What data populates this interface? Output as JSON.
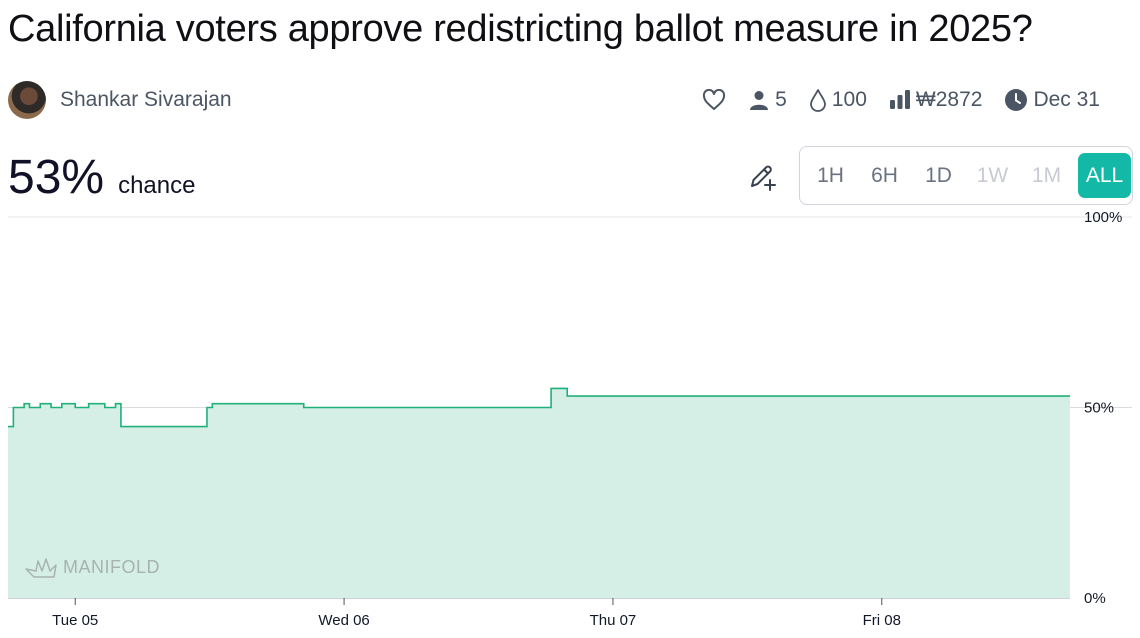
{
  "title": "California voters approve redistricting ballot measure in 2025?",
  "author": {
    "name": "Shankar Sivarajan"
  },
  "stats": {
    "traders": "5",
    "liquidity": "100",
    "volume": "₩2872",
    "close_date": "Dec 31"
  },
  "probability": {
    "value": "53%",
    "label": "chance"
  },
  "time_ranges": [
    {
      "label": "1H",
      "state": "enabled"
    },
    {
      "label": "6H",
      "state": "enabled"
    },
    {
      "label": "1D",
      "state": "enabled"
    },
    {
      "label": "1W",
      "state": "disabled"
    },
    {
      "label": "1M",
      "state": "disabled"
    },
    {
      "label": "ALL",
      "state": "active"
    }
  ],
  "watermark": "MANIFOLD",
  "colors": {
    "accent": "#14b8a6",
    "line": "#20b07a",
    "fill": "#d6efe6"
  },
  "chart_data": {
    "type": "line",
    "y_ticks": [
      "100%",
      "50%",
      "0%"
    ],
    "x_ticks": [
      "Tue 05",
      "Wed 06",
      "Thu 07",
      "Fri 08"
    ],
    "ylim": [
      0,
      100
    ],
    "xlim": [
      0,
      3.95
    ],
    "series": [
      {
        "points": [
          [
            0.0,
            45
          ],
          [
            0.02,
            50
          ],
          [
            0.06,
            51
          ],
          [
            0.08,
            50
          ],
          [
            0.12,
            51
          ],
          [
            0.16,
            50
          ],
          [
            0.2,
            51
          ],
          [
            0.25,
            50
          ],
          [
            0.3,
            51
          ],
          [
            0.36,
            50
          ],
          [
            0.4,
            51
          ],
          [
            0.42,
            45
          ],
          [
            0.73,
            45
          ],
          [
            0.74,
            50
          ],
          [
            0.76,
            51
          ],
          [
            1.08,
            51
          ],
          [
            1.1,
            50
          ],
          [
            2.0,
            50
          ],
          [
            2.02,
            55
          ],
          [
            2.07,
            55
          ],
          [
            2.08,
            53
          ],
          [
            3.95,
            53
          ]
        ]
      }
    ]
  }
}
